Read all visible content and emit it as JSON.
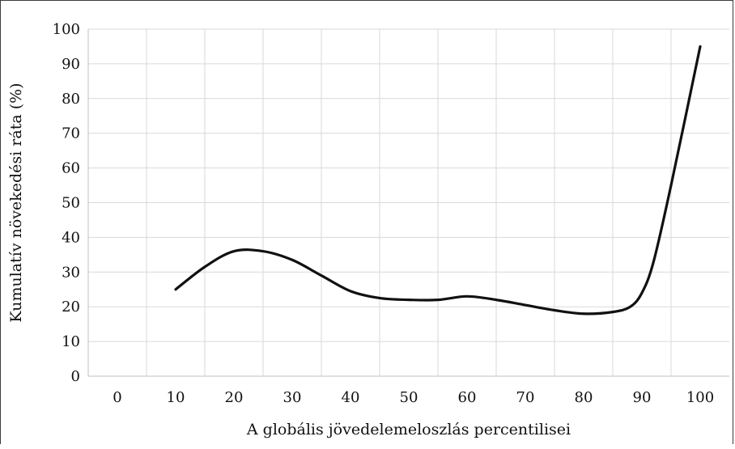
{
  "chart_data": {
    "type": "line",
    "title": "",
    "xlabel": "A globális jövedelemeloszlás percentilisei",
    "ylabel": "Kumulatív növekedési ráta  (%)",
    "x_ticks": [
      "0",
      "10",
      "20",
      "30",
      "40",
      "50",
      "60",
      "70",
      "80",
      "90",
      "100"
    ],
    "y_ticks": [
      "0",
      "10",
      "20",
      "30",
      "40",
      "50",
      "60",
      "70",
      "80",
      "90",
      "100"
    ],
    "xlim": [
      -5,
      105
    ],
    "ylim": [
      0,
      100
    ],
    "grid": true,
    "series": [
      {
        "color": "#111111",
        "x": [
          10,
          15,
          20,
          25,
          30,
          35,
          40,
          45,
          50,
          55,
          60,
          65,
          70,
          75,
          80,
          85,
          88,
          90,
          92,
          95,
          100
        ],
        "y": [
          25,
          31.5,
          36,
          36,
          33.5,
          29,
          24.5,
          22.5,
          22,
          22,
          23,
          22,
          20.5,
          19,
          18,
          18.5,
          20,
          24,
          33,
          55,
          95
        ]
      }
    ]
  }
}
